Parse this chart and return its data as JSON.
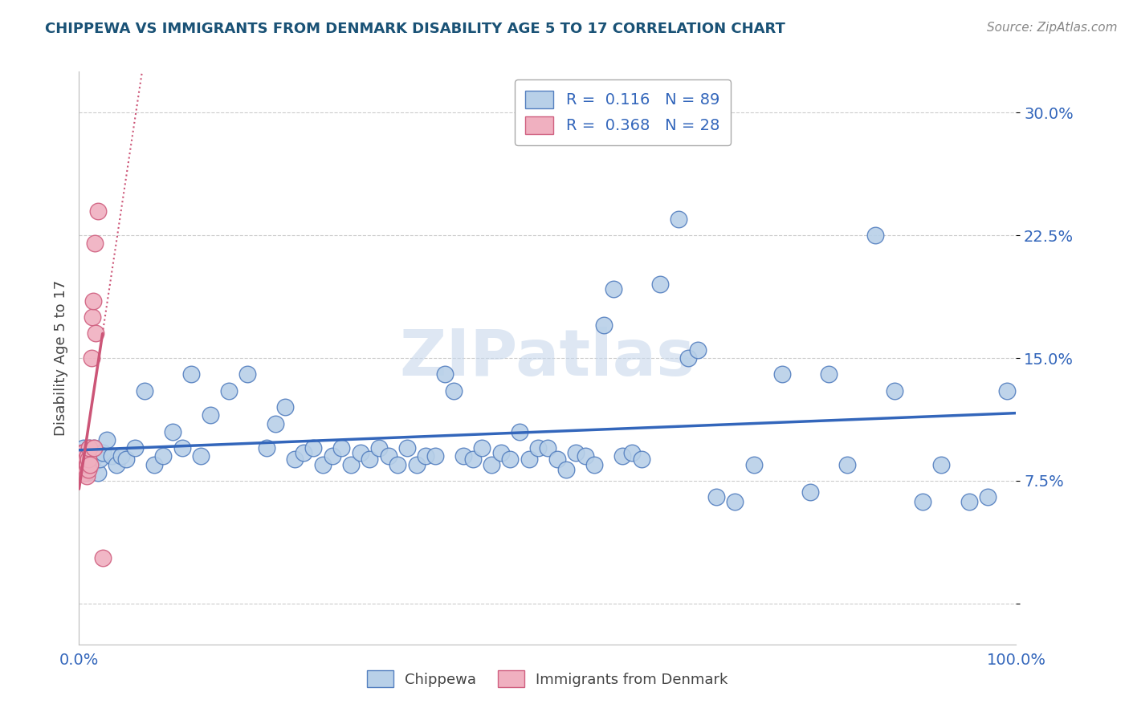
{
  "title": "CHIPPEWA VS IMMIGRANTS FROM DENMARK DISABILITY AGE 5 TO 17 CORRELATION CHART",
  "source_text": "Source: ZipAtlas.com",
  "ylabel": "Disability Age 5 to 17",
  "xlim": [
    0.0,
    1.0
  ],
  "ylim": [
    -0.025,
    0.325
  ],
  "ytick_positions": [
    0.0,
    0.075,
    0.15,
    0.225,
    0.3
  ],
  "ytick_labels": [
    "",
    "7.5%",
    "15.0%",
    "22.5%",
    "30.0%"
  ],
  "xtick_positions": [
    0.0,
    0.25,
    0.5,
    0.75,
    1.0
  ],
  "xtick_labels": [
    "0.0%",
    "",
    "",
    "",
    "100.0%"
  ],
  "legend_r1": "R =  0.116",
  "legend_n1": "N = 89",
  "legend_r2": "R =  0.368",
  "legend_n2": "N = 28",
  "color_chippewa_fill": "#b8d0e8",
  "color_chippewa_edge": "#5580c0",
  "color_denmark_fill": "#f0b0c0",
  "color_denmark_edge": "#d06080",
  "line_color_chippewa": "#3366BB",
  "line_color_denmark": "#CC5577",
  "background_color": "#ffffff",
  "grid_color": "#cccccc",
  "title_color": "#1a5276",
  "watermark_color": "#c8d8ec",
  "legend_text_color": "#3366BB",
  "source_color": "#888888",
  "axis_label_color": "#444444",
  "tick_label_color": "#3366BB",
  "bottom_legend_color": "#444444",
  "chippewa_x": [
    0.005,
    0.006,
    0.007,
    0.008,
    0.01,
    0.011,
    0.012,
    0.013,
    0.014,
    0.016,
    0.018,
    0.02,
    0.022,
    0.025,
    0.03,
    0.035,
    0.04,
    0.045,
    0.05,
    0.06,
    0.07,
    0.08,
    0.09,
    0.1,
    0.11,
    0.12,
    0.13,
    0.14,
    0.16,
    0.18,
    0.2,
    0.21,
    0.22,
    0.23,
    0.24,
    0.25,
    0.26,
    0.27,
    0.28,
    0.29,
    0.3,
    0.31,
    0.32,
    0.33,
    0.34,
    0.35,
    0.36,
    0.37,
    0.38,
    0.39,
    0.4,
    0.41,
    0.42,
    0.43,
    0.44,
    0.45,
    0.46,
    0.47,
    0.48,
    0.49,
    0.5,
    0.51,
    0.52,
    0.53,
    0.54,
    0.55,
    0.56,
    0.57,
    0.58,
    0.59,
    0.6,
    0.62,
    0.64,
    0.65,
    0.66,
    0.68,
    0.7,
    0.72,
    0.75,
    0.78,
    0.8,
    0.82,
    0.85,
    0.87,
    0.9,
    0.92,
    0.95,
    0.97,
    0.99
  ],
  "chippewa_y": [
    0.095,
    0.09,
    0.085,
    0.08,
    0.085,
    0.095,
    0.09,
    0.085,
    0.09,
    0.095,
    0.09,
    0.08,
    0.088,
    0.092,
    0.1,
    0.09,
    0.085,
    0.09,
    0.088,
    0.095,
    0.13,
    0.085,
    0.09,
    0.105,
    0.095,
    0.14,
    0.09,
    0.115,
    0.13,
    0.14,
    0.095,
    0.11,
    0.12,
    0.088,
    0.092,
    0.095,
    0.085,
    0.09,
    0.095,
    0.085,
    0.092,
    0.088,
    0.095,
    0.09,
    0.085,
    0.095,
    0.085,
    0.09,
    0.09,
    0.14,
    0.13,
    0.09,
    0.088,
    0.095,
    0.085,
    0.092,
    0.088,
    0.105,
    0.088,
    0.095,
    0.095,
    0.088,
    0.082,
    0.092,
    0.09,
    0.085,
    0.17,
    0.192,
    0.09,
    0.092,
    0.088,
    0.195,
    0.235,
    0.15,
    0.155,
    0.065,
    0.062,
    0.085,
    0.14,
    0.068,
    0.14,
    0.085,
    0.225,
    0.13,
    0.062,
    0.085,
    0.062,
    0.065,
    0.13
  ],
  "denmark_x": [
    0.001,
    0.002,
    0.003,
    0.003,
    0.004,
    0.004,
    0.005,
    0.005,
    0.006,
    0.006,
    0.007,
    0.007,
    0.008,
    0.008,
    0.009,
    0.009,
    0.01,
    0.01,
    0.011,
    0.012,
    0.013,
    0.014,
    0.015,
    0.016,
    0.017,
    0.018,
    0.02,
    0.025
  ],
  "denmark_y": [
    0.09,
    0.082,
    0.085,
    0.092,
    0.088,
    0.08,
    0.085,
    0.092,
    0.08,
    0.085,
    0.082,
    0.088,
    0.078,
    0.085,
    0.09,
    0.085,
    0.082,
    0.088,
    0.095,
    0.085,
    0.15,
    0.175,
    0.185,
    0.095,
    0.22,
    0.165,
    0.24,
    0.028
  ]
}
